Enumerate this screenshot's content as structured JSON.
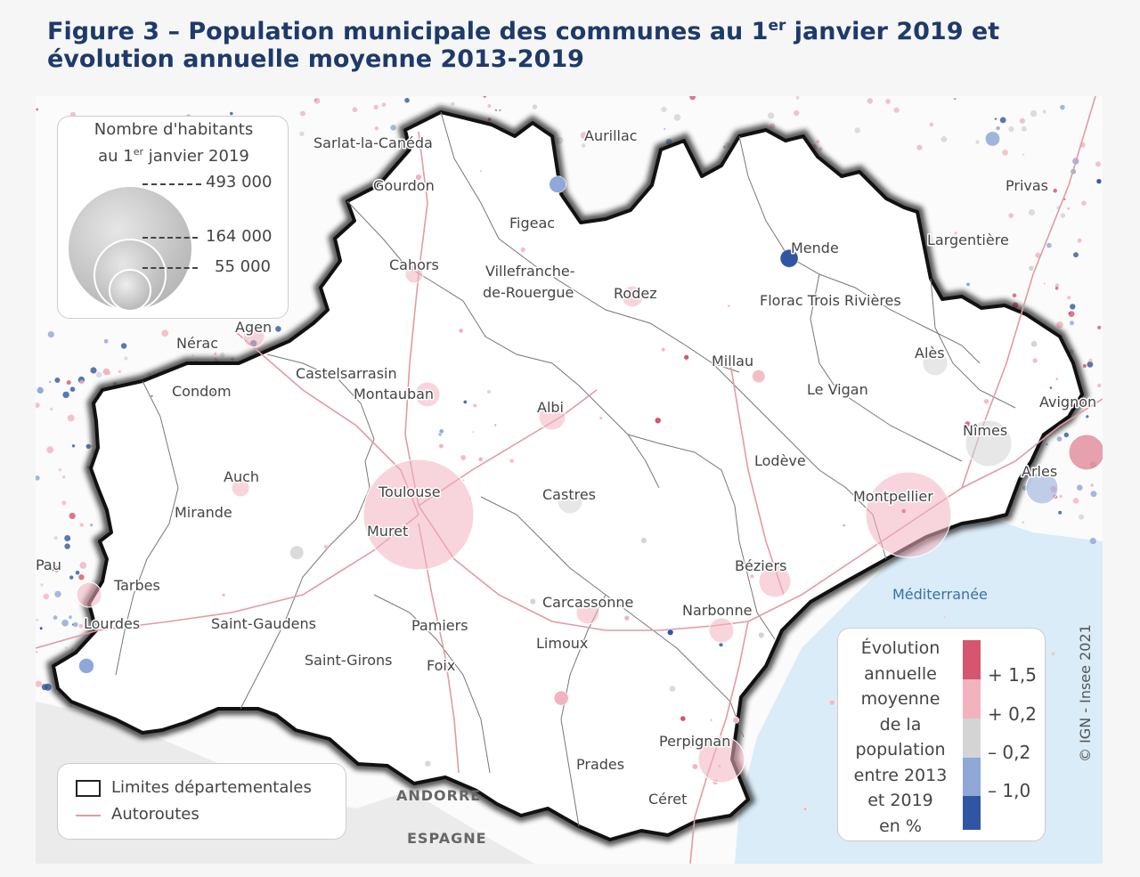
{
  "figure": {
    "title_pre": "Figure 3 – Population municipale des communes au 1",
    "title_sup": "er",
    "title_post": " janvier 2019 et évolution annuelle moyenne 2013-2019"
  },
  "colors": {
    "strong_growth": "#d6566f",
    "growth": "#f2b3bf",
    "stable": "#d4d4d4",
    "decline": "#8fa8d8",
    "strong_decline": "#3056a2",
    "sea": "#d9ecf7",
    "border": "#111111",
    "motorway": "#e29aa5"
  },
  "size_legend": {
    "title_line1": "Nombre d'habitants",
    "title_line2_pre": "au 1",
    "title_line2_sup": "er",
    "title_line2_post": " janvier 2019",
    "values": [
      "493 000",
      "164 000",
      "55 000"
    ]
  },
  "line_legend": {
    "departmental_limits": "Limites départementales",
    "motorways": "Autoroutes"
  },
  "color_legend": {
    "title": "Évolution annuelle moyenne de la population entre 2013 et 2019 en %",
    "title_lines": [
      "Évolution",
      "annuelle",
      "moyenne",
      "de la",
      "population",
      "entre 2013",
      "et 2019",
      "en %"
    ],
    "thresholds": [
      "+ 1,5",
      "+ 0,2",
      "– 0,2",
      "– 1,0"
    ]
  },
  "places": {
    "sarlat": "Sarlat-la-Canéda",
    "aurillac": "Aurillac",
    "gourdon": "Gourdon",
    "privas": "Privas",
    "figeac": "Figeac",
    "mende": "Mende",
    "largentiere": "Largentière",
    "cahors": "Cahors",
    "villefranche_1": "Villefranche-",
    "villefranche_2": "de-Rouergue",
    "rodez": "Rodez",
    "florac": "Florac Trois Rivières",
    "agen": "Agen",
    "nerac": "Nérac",
    "ales": "Alès",
    "millau": "Millau",
    "castelsarrasin": "Castelsarrasin",
    "montauban": "Montauban",
    "le_vigan": "Le Vigan",
    "condom": "Condom",
    "avignon": "Avignon",
    "albi": "Albi",
    "nimes": "Nîmes",
    "lodeve": "Lodève",
    "arles": "Arles",
    "auch": "Auch",
    "toulouse": "Toulouse",
    "castres": "Castres",
    "montpellier": "Montpellier",
    "mirande": "Mirande",
    "muret": "Muret",
    "beziers": "Béziers",
    "pau": "Pau",
    "tarbes": "Tarbes",
    "carcassonne": "Carcassonne",
    "narbonne": "Narbonne",
    "lourdes": "Lourdes",
    "saint_gaudens": "Saint-Gaudens",
    "pamiers": "Pamiers",
    "limoux": "Limoux",
    "saint_girons": "Saint-Girons",
    "foix": "Foix",
    "perpignan": "Perpignan",
    "prades": "Prades",
    "ceret": "Céret",
    "mediterranee": "Méditerranée",
    "andorre": "ANDORRE",
    "espagne": "ESPAGNE",
    "credit": "© IGN - Insee 2021"
  }
}
